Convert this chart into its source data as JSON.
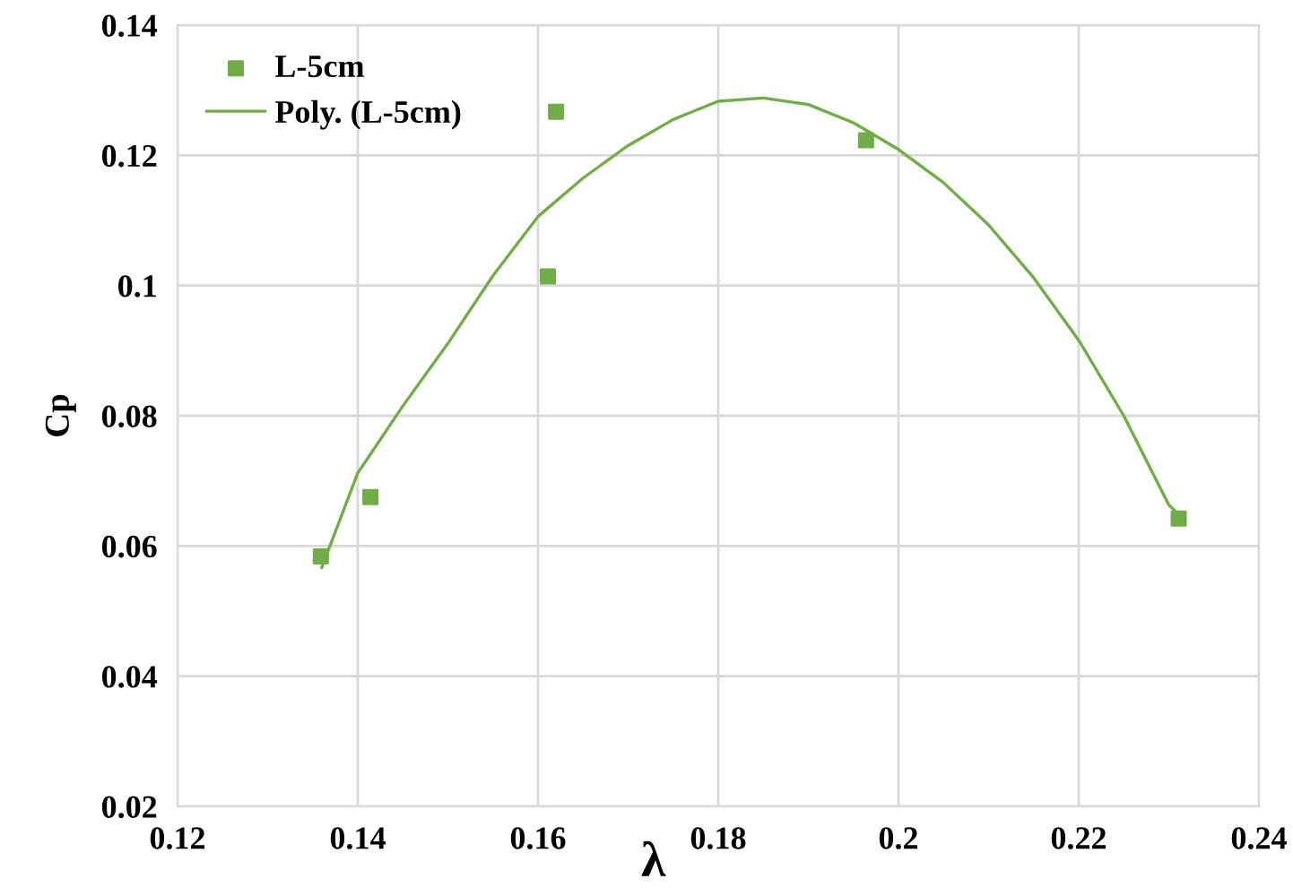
{
  "chart_data": {
    "type": "scatter",
    "xlabel": "λ",
    "ylabel": "Cp",
    "xlim": [
      0.12,
      0.24
    ],
    "xticks": [
      0.12,
      0.14,
      0.16,
      0.18,
      0.2,
      0.22,
      0.24
    ],
    "ylim": [
      0.02,
      0.14
    ],
    "yticks": [
      0.02,
      0.04,
      0.06,
      0.08,
      0.1,
      0.12,
      0.14
    ],
    "grid": true,
    "legend": "top left",
    "series": [
      {
        "name": "L-5cm",
        "marker": "square",
        "color": "#70ad47",
        "x": [
          0.1359,
          0.1414,
          0.1611,
          0.162,
          0.1964,
          0.2311
        ],
        "values": [
          0.0584,
          0.0675,
          0.1014,
          0.1267,
          0.1223,
          0.0642
        ]
      },
      {
        "name": "Poly. (L-5cm)",
        "type": "line",
        "marker": "none",
        "line_style": "solid",
        "color": "#70ad47",
        "x": [
          0.136,
          0.14,
          0.145,
          0.15,
          0.155,
          0.16,
          0.165,
          0.17,
          0.175,
          0.18,
          0.185,
          0.19,
          0.195,
          0.2,
          0.205,
          0.21,
          0.215,
          0.22,
          0.225,
          0.23,
          0.231
        ],
        "values": [
          0.0567,
          0.0712,
          0.0815,
          0.0911,
          0.1015,
          0.1106,
          0.1165,
          0.1215,
          0.1255,
          0.1283,
          0.1288,
          0.1278,
          0.125,
          0.1209,
          0.1158,
          0.1093,
          0.1012,
          0.0916,
          0.08,
          0.0663,
          0.065
        ]
      }
    ]
  }
}
